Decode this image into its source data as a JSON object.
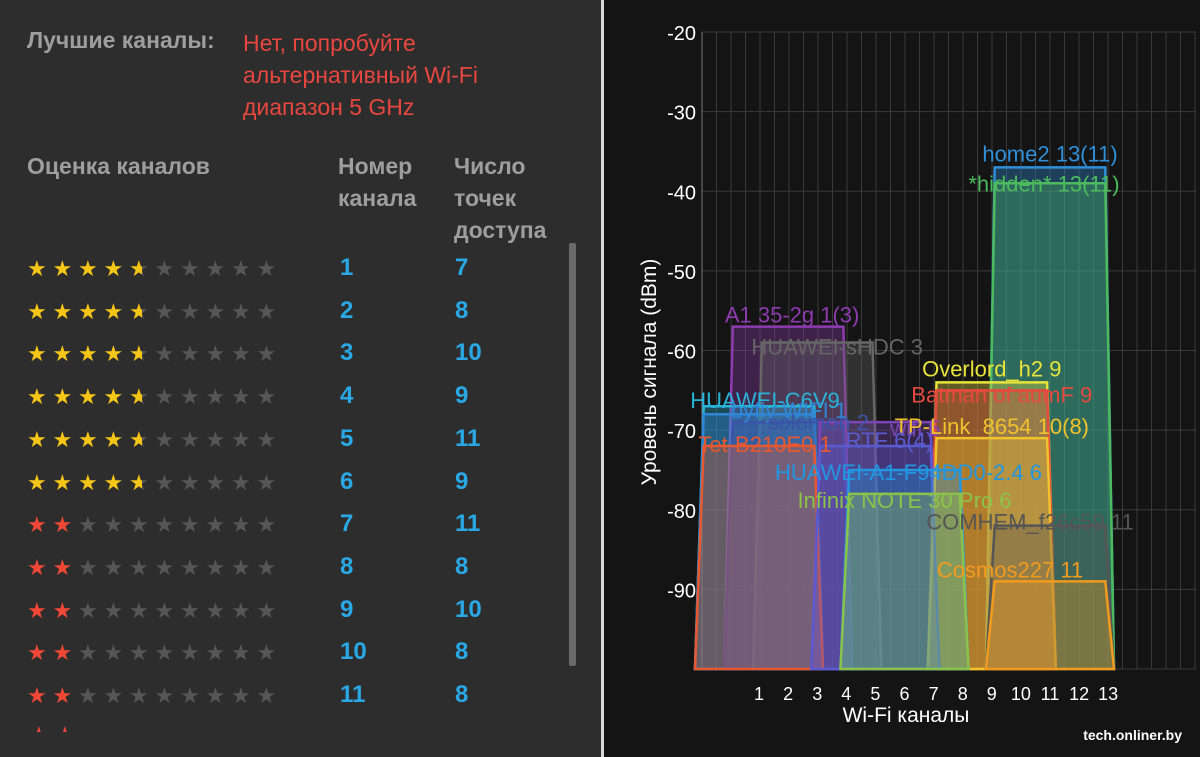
{
  "best_channels": {
    "label": "Лучшие каналы:",
    "value_lines": [
      "Нет, попробуйте",
      "альтернативный Wi-Fi",
      "диапазон 5 GHz"
    ]
  },
  "table": {
    "header_rating": "Оценка каналов",
    "header_channel": [
      "Номер",
      "канала"
    ],
    "header_count": [
      "Число",
      "точек",
      "доступа"
    ],
    "rows": [
      {
        "channel": "1",
        "count": "7",
        "rating": 4.5,
        "color": "gold"
      },
      {
        "channel": "2",
        "count": "8",
        "rating": 4.5,
        "color": "gold"
      },
      {
        "channel": "3",
        "count": "10",
        "rating": 4.5,
        "color": "gold"
      },
      {
        "channel": "4",
        "count": "9",
        "rating": 4.5,
        "color": "gold"
      },
      {
        "channel": "5",
        "count": "11",
        "rating": 4.5,
        "color": "gold"
      },
      {
        "channel": "6",
        "count": "9",
        "rating": 4.5,
        "color": "gold"
      },
      {
        "channel": "7",
        "count": "11",
        "rating": 2,
        "color": "red"
      },
      {
        "channel": "8",
        "count": "8",
        "rating": 2,
        "color": "red"
      },
      {
        "channel": "9",
        "count": "10",
        "rating": 2,
        "color": "red"
      },
      {
        "channel": "10",
        "count": "8",
        "rating": 2,
        "color": "red"
      },
      {
        "channel": "11",
        "count": "8",
        "rating": 2,
        "color": "red"
      }
    ],
    "max_rating": 10
  },
  "chart_data": {
    "type": "area",
    "ylabel": "Уровень сигнала (dBm)",
    "xlabel": "Wi-Fi каналы",
    "ylim": [
      -100,
      -20
    ],
    "yticks": [
      "-20",
      "-30",
      "-40",
      "-50",
      "-60",
      "-70",
      "-80",
      "-90"
    ],
    "xticks": [
      "1",
      "2",
      "3",
      "4",
      "5",
      "6",
      "7",
      "8",
      "9",
      "10",
      "11",
      "12",
      "13"
    ],
    "grid": true,
    "series": [
      {
        "name": "home2 13(11)",
        "center": 11,
        "signal": -37,
        "color": "#2f8fd9"
      },
      {
        "name": "*hidden* 13(11)",
        "center": 11,
        "signal": -39,
        "color": "#4cbb5e"
      },
      {
        "name": "A1 35-2g 1(3)",
        "center": 2,
        "signal": -57,
        "color": "#8e3bb0"
      },
      {
        "name": "HUAWEI-sHDC 3",
        "center": 3,
        "signal": -59,
        "color": "#666666"
      },
      {
        "name": "Overlord_h2 9",
        "center": 9,
        "signal": -64,
        "color": "#e7e33b"
      },
      {
        "name": "Batman of aumF 9",
        "center": 9,
        "signal": -65,
        "color": "#e64a3e"
      },
      {
        "name": "HUAWEI-C6V9",
        "center": 1,
        "signal": -67,
        "color": "#28b3d8"
      },
      {
        "name": "byfly WIFI 1",
        "center": 1,
        "signal": -68,
        "color": "#2f86d6"
      },
      {
        "name": "solomon 2",
        "center": 2,
        "signal": -69,
        "color": "#3a54a8"
      },
      {
        "name": "wifi 5",
        "center": 5,
        "signal": -69,
        "color": "#7c45b5"
      },
      {
        "name": "TP-Link_8654 10(8)",
        "center": 9,
        "signal": -71,
        "color": "#f2c22d"
      },
      {
        "name": "Tet-B210E0 1",
        "center": 1,
        "signal": -72,
        "color": "#e8582f"
      },
      {
        "name": "RTF 6(4)",
        "center": 5,
        "signal": -72,
        "color": "#5a5ad0"
      },
      {
        "name": "HUAWEI-A1-F94DD0-2.4 6",
        "center": 6,
        "signal": -75,
        "color": "#2296e0"
      },
      {
        "name": "Infinix NOTE 30 Pro 6",
        "center": 6,
        "signal": -78,
        "color": "#8bc34a"
      },
      {
        "name": "COMHEM_f26c59 11",
        "center": 11,
        "signal": -82,
        "color": "#555555"
      },
      {
        "name": "Cosmos227 11",
        "center": 11,
        "signal": -89,
        "color": "#f29a1d"
      }
    ]
  },
  "watermark": "tech.onliner.by"
}
